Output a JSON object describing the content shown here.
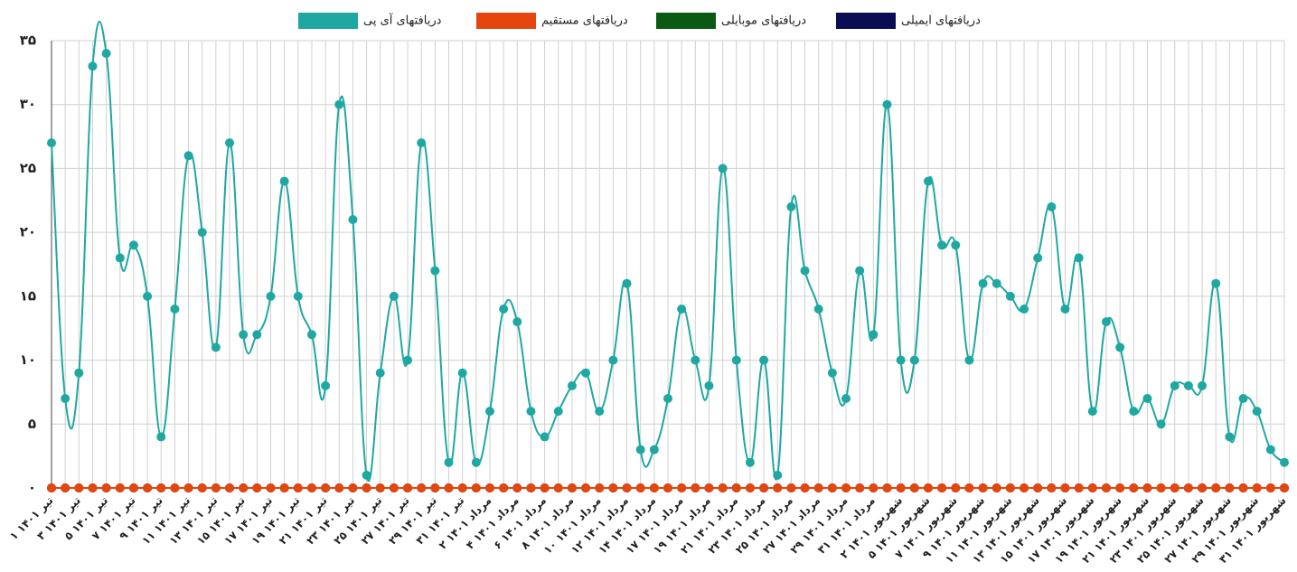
{
  "chart_data": {
    "type": "line",
    "categories": [
      "۱ تیر ۱۴۰۱",
      null,
      "۳ تیر ۱۴۰۱",
      null,
      "۵ تیر ۱۴۰۱",
      null,
      "۷ تیر ۱۴۰۱",
      null,
      "۹ تیر ۱۴۰۱",
      null,
      "۱۱ تیر ۱۴۰۱",
      null,
      "۱۳ تیر ۱۴۰۱",
      null,
      "۱۵ تیر ۱۴۰۱",
      null,
      "۱۷ تیر ۱۴۰۱",
      null,
      "۱۹ تیر ۱۴۰۱",
      null,
      "۲۱ تیر ۱۴۰۱",
      null,
      "۲۳ تیر ۱۴۰۱",
      null,
      "۲۵ تیر ۱۴۰۱",
      null,
      "۲۷ تیر ۱۴۰۱",
      null,
      "۲۹ تیر ۱۴۰۱",
      null,
      "۳۱ تیر ۱۴۰۱",
      null,
      "۲ مرداد ۱۴۰۱",
      null,
      "۴ مرداد ۱۴۰۱",
      null,
      "۶ مرداد ۱۴۰۱",
      null,
      "۸ مرداد ۱۴۰۱",
      null,
      "۱۰ مرداد ۱۴۰۱",
      null,
      "۱۲ مرداد ۱۴۰۱",
      null,
      "۱۴ مرداد ۱۴۰۱",
      null,
      "۱۷ مرداد ۱۴۰۱",
      null,
      "۱۹ مرداد ۱۴۰۱",
      null,
      "۲۱ مرداد ۱۴۰۱",
      null,
      "۲۳ مرداد ۱۴۰۱",
      null,
      "۲۵ مرداد ۱۴۰۱",
      null,
      "۲۷ مرداد ۱۴۰۱",
      null,
      "۲۹ مرداد ۱۴۰۱",
      null,
      "۳۱ مرداد ۱۴۰۱",
      null,
      "۲ شهریور ۱۴۰۱",
      null,
      "۵ شهریور ۱۴۰۱",
      null,
      "۷ شهریور ۱۴۰۱",
      null,
      "۹ شهریور ۱۴۰۱",
      null,
      "۱۱ شهریور ۱۴۰۱",
      null,
      "۱۳ شهریور ۱۴۰۱",
      null,
      "۱۵ شهریور ۱۴۰۱",
      null,
      "۱۷ شهریور ۱۴۰۱",
      null,
      "۱۹ شهریور ۱۴۰۱",
      null,
      "۲۱ شهریور ۱۴۰۱",
      null,
      "۲۳ شهریور ۱۴۰۱",
      null,
      "۲۵ شهریور ۱۴۰۱",
      null,
      "۲۷ شهریور ۱۴۰۱",
      null,
      "۲۹ شهریور ۱۴۰۱",
      null,
      "۳۱ شهریور ۱۴۰۱"
    ],
    "series": [
      {
        "name": "دریافتهای آی پی",
        "color": "#1fa8a2",
        "values": [
          27,
          7,
          9,
          33,
          34,
          18,
          19,
          15,
          4,
          14,
          26,
          20,
          11,
          27,
          12,
          12,
          15,
          24,
          15,
          12,
          8,
          30,
          21,
          1,
          9,
          15,
          10,
          27,
          17,
          2,
          9,
          2,
          6,
          14,
          13,
          6,
          4,
          6,
          8,
          9,
          6,
          10,
          16,
          3,
          3,
          7,
          14,
          10,
          8,
          25,
          10,
          2,
          10,
          1,
          22,
          17,
          14,
          9,
          7,
          17,
          12,
          30,
          10,
          10,
          24,
          19,
          19,
          10,
          16,
          16,
          15,
          14,
          18,
          22,
          14,
          18,
          6,
          13,
          11,
          6,
          7,
          5,
          8,
          8,
          8,
          16,
          4,
          7,
          6,
          3,
          2
        ]
      },
      {
        "name": "دریافتهای مستقیم",
        "color": "#e5460e",
        "values": [
          0,
          0,
          0,
          0,
          0,
          0,
          0,
          0,
          0,
          0,
          0,
          0,
          0,
          0,
          0,
          0,
          0,
          0,
          0,
          0,
          0,
          0,
          0,
          0,
          0,
          0,
          0,
          0,
          0,
          0,
          0,
          0,
          0,
          0,
          0,
          0,
          0,
          0,
          0,
          0,
          0,
          0,
          0,
          0,
          0,
          0,
          0,
          0,
          0,
          0,
          0,
          0,
          0,
          0,
          0,
          0,
          0,
          0,
          0,
          0,
          0,
          0,
          0,
          0,
          0,
          0,
          0,
          0,
          0,
          0,
          0,
          0,
          0,
          0,
          0,
          0,
          0,
          0,
          0,
          0,
          0,
          0,
          0,
          0,
          0,
          0,
          0,
          0,
          0,
          0,
          0
        ]
      },
      {
        "name": "دریافتهای موبایلی",
        "color": "#0b5a14",
        "values": [
          0,
          0,
          0,
          0,
          0,
          0,
          0,
          0,
          0,
          0,
          0,
          0,
          0,
          0,
          0,
          0,
          0,
          0,
          0,
          0,
          0,
          0,
          0,
          0,
          0,
          0,
          0,
          0,
          0,
          0,
          0,
          0,
          0,
          0,
          0,
          0,
          0,
          0,
          0,
          0,
          0,
          0,
          0,
          0,
          0,
          0,
          0,
          0,
          0,
          0,
          0,
          0,
          0,
          0,
          0,
          0,
          0,
          0,
          0,
          0,
          0,
          0,
          0,
          0,
          0,
          0,
          0,
          0,
          0,
          0,
          0,
          0,
          0,
          0,
          0,
          0,
          0,
          0,
          0,
          0,
          0,
          0,
          0,
          0,
          0,
          0,
          0,
          0,
          0,
          0,
          0
        ]
      },
      {
        "name": "دریافتهای ایمیلی",
        "color": "#0c0c55",
        "values": [
          0,
          0,
          0,
          0,
          0,
          0,
          0,
          0,
          0,
          0,
          0,
          0,
          0,
          0,
          0,
          0,
          0,
          0,
          0,
          0,
          0,
          0,
          0,
          0,
          0,
          0,
          0,
          0,
          0,
          0,
          0,
          0,
          0,
          0,
          0,
          0,
          0,
          0,
          0,
          0,
          0,
          0,
          0,
          0,
          0,
          0,
          0,
          0,
          0,
          0,
          0,
          0,
          0,
          0,
          0,
          0,
          0,
          0,
          0,
          0,
          0,
          0,
          0,
          0,
          0,
          0,
          0,
          0,
          0,
          0,
          0,
          0,
          0,
          0,
          0,
          0,
          0,
          0,
          0,
          0,
          0,
          0,
          0,
          0,
          0,
          0,
          0,
          0,
          0,
          0,
          0
        ]
      }
    ],
    "ylim": [
      0,
      35
    ],
    "yticks": [
      {
        "value": 0,
        "label": "۰"
      },
      {
        "value": 5,
        "label": "۵"
      },
      {
        "value": 10,
        "label": "۱۰"
      },
      {
        "value": 15,
        "label": "۱۵"
      },
      {
        "value": 20,
        "label": "۲۰"
      },
      {
        "value": 25,
        "label": "۲۵"
      },
      {
        "value": 30,
        "label": "۳۰"
      },
      {
        "value": 35,
        "label": "۳۵"
      }
    ],
    "grid": true
  }
}
